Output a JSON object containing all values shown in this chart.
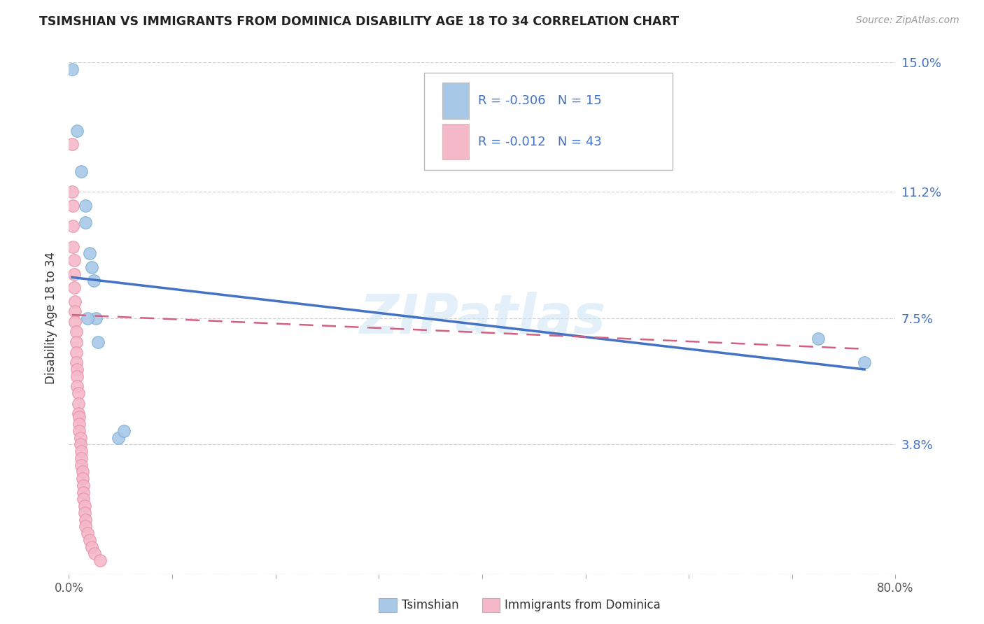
{
  "title": "TSIMSHIAN VS IMMIGRANTS FROM DOMINICA DISABILITY AGE 18 TO 34 CORRELATION CHART",
  "source": "Source: ZipAtlas.com",
  "ylabel": "Disability Age 18 to 34",
  "xlim": [
    0.0,
    0.8
  ],
  "ylim": [
    0.0,
    0.15
  ],
  "yticks": [
    0.0,
    0.038,
    0.075,
    0.112,
    0.15
  ],
  "ytick_labels": [
    "",
    "3.8%",
    "7.5%",
    "11.2%",
    "15.0%"
  ],
  "xticks": [
    0.0,
    0.1,
    0.2,
    0.3,
    0.4,
    0.5,
    0.6,
    0.7,
    0.8
  ],
  "xtick_labels": [
    "0.0%",
    "",
    "",
    "",
    "",
    "",
    "",
    "",
    "80.0%"
  ],
  "watermark": "ZIPatlas",
  "tsimshian_color": "#a8c8e8",
  "tsimshian_edge": "#7bafd4",
  "dominica_color": "#f4b8c8",
  "dominica_edge": "#e890a8",
  "line_blue": "#4472c4",
  "line_pink": "#d46080",
  "tsimshian_R": -0.306,
  "tsimshian_N": 15,
  "dominica_R": -0.012,
  "dominica_N": 43,
  "tsimshian_x": [
    0.003,
    0.008,
    0.012,
    0.016,
    0.016,
    0.02,
    0.022,
    0.024,
    0.026,
    0.028,
    0.048,
    0.053,
    0.018,
    0.725,
    0.77
  ],
  "tsimshian_y": [
    0.148,
    0.13,
    0.118,
    0.108,
    0.103,
    0.094,
    0.09,
    0.086,
    0.075,
    0.068,
    0.04,
    0.042,
    0.075,
    0.069,
    0.062
  ],
  "dominica_x": [
    0.003,
    0.003,
    0.004,
    0.004,
    0.004,
    0.005,
    0.005,
    0.005,
    0.006,
    0.006,
    0.006,
    0.007,
    0.007,
    0.007,
    0.007,
    0.008,
    0.008,
    0.008,
    0.009,
    0.009,
    0.009,
    0.01,
    0.01,
    0.01,
    0.011,
    0.011,
    0.012,
    0.012,
    0.012,
    0.013,
    0.013,
    0.014,
    0.014,
    0.014,
    0.015,
    0.015,
    0.016,
    0.016,
    0.018,
    0.02,
    0.022,
    0.025,
    0.03
  ],
  "dominica_y": [
    0.126,
    0.112,
    0.108,
    0.102,
    0.096,
    0.092,
    0.088,
    0.084,
    0.08,
    0.077,
    0.074,
    0.071,
    0.068,
    0.065,
    0.062,
    0.06,
    0.058,
    0.055,
    0.053,
    0.05,
    0.047,
    0.046,
    0.044,
    0.042,
    0.04,
    0.038,
    0.036,
    0.034,
    0.032,
    0.03,
    0.028,
    0.026,
    0.024,
    0.022,
    0.02,
    0.018,
    0.016,
    0.014,
    0.012,
    0.01,
    0.008,
    0.006,
    0.004
  ],
  "tsim_line_x": [
    0.003,
    0.77
  ],
  "tsim_line_y": [
    0.087,
    0.06
  ],
  "dom_line_x": [
    0.003,
    0.77
  ],
  "dom_line_y": [
    0.076,
    0.066
  ],
  "background_color": "#ffffff",
  "grid_color": "#cccccc",
  "legend_rect_color_blue": "#a8c8e8",
  "legend_rect_color_pink": "#f4b8c8",
  "legend_text_color": "#4472c4"
}
